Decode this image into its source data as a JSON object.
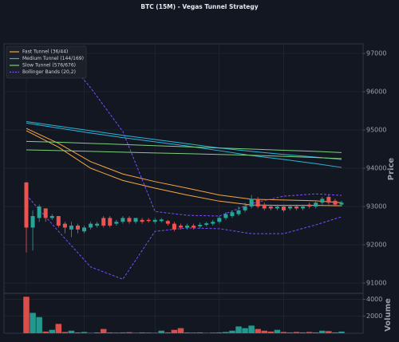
{
  "chart_data": {
    "type": "candlestick",
    "title": "BTC (15M) - Vegas Tunnel Strategy",
    "ylabel": "Price",
    "volume_label": "Volume",
    "ylim": [
      90730,
      97250
    ],
    "yticks": [
      91000,
      92000,
      93000,
      94000,
      95000,
      96000,
      97000
    ],
    "volume_ylim": [
      0,
      4700
    ],
    "volume_yticks": [
      2000,
      4000
    ],
    "grid": true,
    "legend": "upper left",
    "up_color": "#26a69a",
    "down_color": "#ef5350",
    "open": [
      93630,
      92450,
      92700,
      92950,
      92700,
      92750,
      92550,
      92400,
      92500,
      92350,
      92450,
      92500,
      92700,
      92700,
      92550,
      92600,
      92700,
      92600,
      92650,
      92650,
      92600,
      92620,
      92620,
      92550,
      92500,
      92450,
      92500,
      92480,
      92520,
      92550,
      92600,
      92700,
      92750,
      92800,
      92900,
      93000,
      93200,
      93050,
      93000,
      92950,
      93000,
      92950,
      93000,
      92950,
      93050,
      93000,
      93100,
      93250,
      93150,
      93050
    ],
    "high": [
      93630,
      92900,
      93050,
      92950,
      92800,
      92750,
      92600,
      92600,
      92550,
      92500,
      92600,
      92600,
      92750,
      92750,
      92650,
      92750,
      92750,
      92700,
      92700,
      92700,
      92700,
      92700,
      92650,
      92600,
      92550,
      92550,
      92550,
      92580,
      92600,
      92650,
      92750,
      92850,
      92900,
      93000,
      93100,
      93300,
      93250,
      93100,
      93050,
      93050,
      93050,
      93050,
      93050,
      93050,
      93100,
      93150,
      93250,
      93300,
      93200,
      93150
    ],
    "low": [
      91800,
      91850,
      92600,
      92600,
      92650,
      92450,
      92300,
      92200,
      92300,
      92300,
      92400,
      92450,
      92450,
      92450,
      92500,
      92550,
      92550,
      92550,
      92550,
      92580,
      92550,
      92580,
      92500,
      92350,
      92400,
      92400,
      92400,
      92430,
      92480,
      92500,
      92550,
      92650,
      92700,
      92750,
      92850,
      92950,
      92950,
      92900,
      92900,
      92900,
      92850,
      92900,
      92900,
      92900,
      92950,
      92950,
      93050,
      93050,
      93000,
      93000
    ],
    "close": [
      92450,
      92750,
      93000,
      92700,
      92750,
      92500,
      92450,
      92500,
      92400,
      92450,
      92550,
      92550,
      92500,
      92500,
      92600,
      92700,
      92600,
      92700,
      92600,
      92620,
      92650,
      92660,
      92550,
      92400,
      92450,
      92500,
      92450,
      92520,
      92560,
      92600,
      92700,
      92800,
      92850,
      92900,
      93000,
      93200,
      93000,
      92950,
      92950,
      93000,
      92900,
      93000,
      92950,
      93000,
      93000,
      93100,
      93200,
      93100,
      93050,
      93100
    ],
    "volume": [
      4300,
      2400,
      1900,
      200,
      400,
      1100,
      150,
      300,
      100,
      150,
      50,
      100,
      500,
      100,
      80,
      100,
      120,
      60,
      100,
      80,
      60,
      300,
      100,
      400,
      600,
      100,
      80,
      100,
      50,
      80,
      100,
      150,
      300,
      800,
      600,
      900,
      500,
      300,
      200,
      400,
      150,
      100,
      150,
      100,
      150,
      100,
      300,
      250,
      100,
      200
    ],
    "line_x": [
      0,
      5,
      10,
      15,
      20,
      25,
      30,
      35,
      40,
      45,
      49
    ],
    "series": [
      {
        "name": "Fast Tunnel (36/44)",
        "color": "#f5a742",
        "style": "solid",
        "lines": [
          [
            95040,
            94650,
            94170,
            93850,
            93650,
            93480,
            93300,
            93190,
            93170,
            93150,
            93100
          ],
          [
            94980,
            94550,
            94000,
            93680,
            93480,
            93300,
            93140,
            93040,
            93030,
            93030,
            93020
          ]
        ]
      },
      {
        "name": "Medium Tunnel (144/169)",
        "color": "#2bb5d8",
        "style": "solid",
        "lines": [
          [
            95220,
            95100,
            94980,
            94860,
            94750,
            94640,
            94530,
            94440,
            94360,
            94290,
            94230
          ],
          [
            95180,
            95050,
            94920,
            94800,
            94690,
            94580,
            94460,
            94330,
            94230,
            94120,
            94020
          ]
        ]
      },
      {
        "name": "Slow Tunnel (576/676)",
        "color": "#7ccf7c",
        "style": "solid",
        "lines": [
          [
            94700,
            94680,
            94650,
            94620,
            94590,
            94560,
            94530,
            94500,
            94470,
            94440,
            94410
          ],
          [
            94480,
            94460,
            94440,
            94420,
            94400,
            94380,
            94360,
            94340,
            94310,
            94280,
            94250
          ]
        ]
      },
      {
        "name": "Bollinger Bands (20,2)",
        "color": "#7c4dff",
        "style": "dashed",
        "lines": [
          [
            null,
            97100,
            96100,
            94960,
            92870,
            92770,
            92750,
            93080,
            93270,
            93330,
            93290
          ],
          [
            93300,
            92350,
            91420,
            91100,
            92350,
            92440,
            92420,
            92290,
            92290,
            92520,
            92730
          ]
        ]
      }
    ]
  }
}
